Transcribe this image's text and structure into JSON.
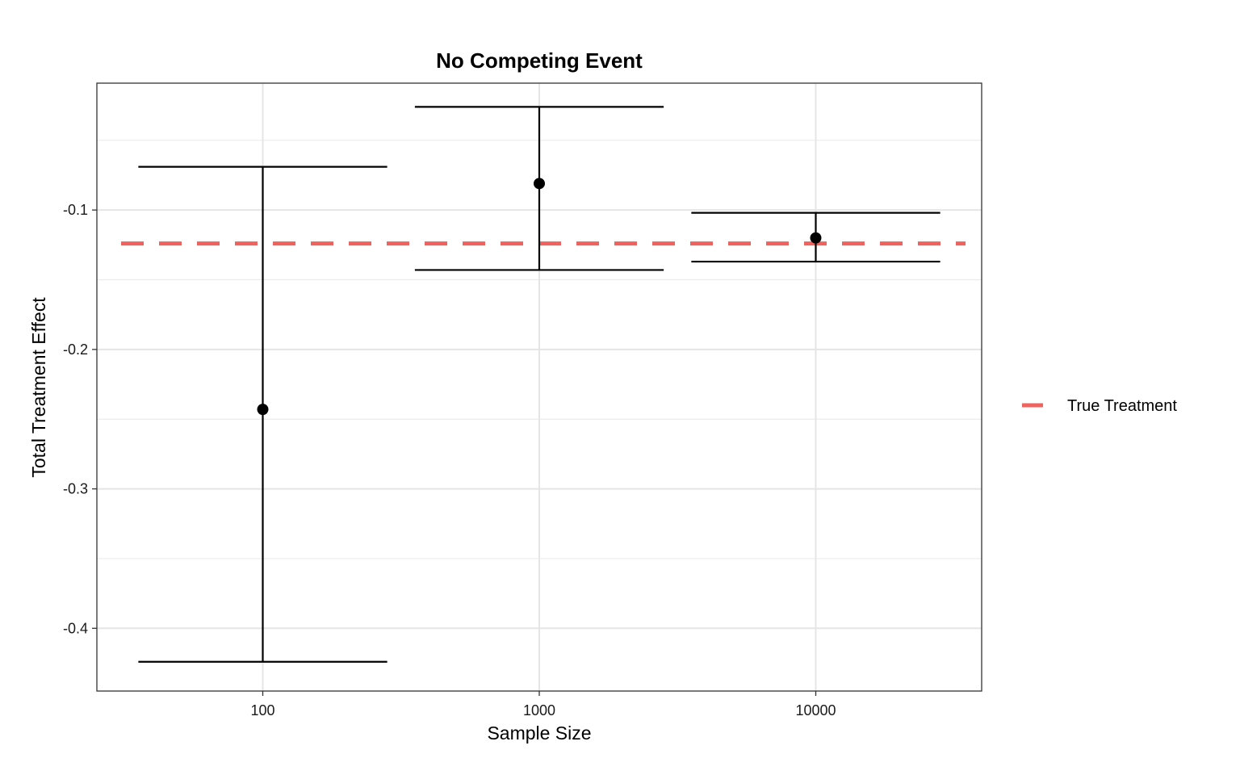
{
  "chart_data": {
    "type": "errorbar",
    "title": "No Competing Event",
    "xlabel": "Sample Size",
    "ylabel": "Total Treatment Effect",
    "categories": [
      "100",
      "1000",
      "10000"
    ],
    "ylim": [
      -0.445,
      -0.009
    ],
    "yticks": [
      -0.4,
      -0.3,
      -0.2,
      -0.1
    ],
    "ytick_labels": [
      "-0.4",
      "-0.3",
      "-0.2",
      "-0.1"
    ],
    "series": [
      {
        "estimate": [
          -0.243,
          -0.081,
          -0.12
        ],
        "lower": [
          -0.424,
          -0.143,
          -0.137
        ],
        "upper": [
          -0.069,
          -0.026,
          -0.102
        ]
      }
    ],
    "reference_line": {
      "name": "True Treatment",
      "value": -0.124,
      "color": "#F0625E",
      "style": "dashed"
    },
    "legend": {
      "position": "right",
      "entries": [
        "True Treatment"
      ]
    },
    "grid": true
  }
}
